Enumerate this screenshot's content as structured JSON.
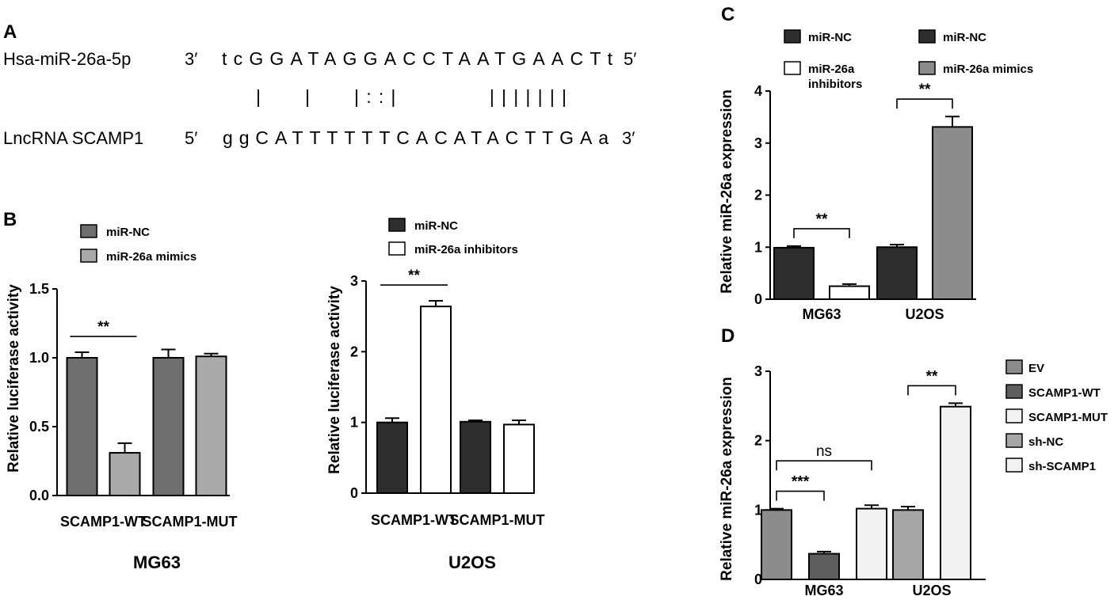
{
  "panels": {
    "A": "A",
    "B": "B",
    "C": "C",
    "D": "D"
  },
  "sequence": {
    "mirna_name": "Hsa-miR-26a-5p",
    "mirna_left_end": "3′",
    "mirna_seq": "tcGGATAGGACCTAATGAACTt",
    "mirna_right_end": "5′",
    "pairing": "|   |   |::|       |||||||",
    "lnc_name": "LncRNA SCAMP1",
    "lnc_left_end": "5′",
    "lnc_seq": "ggCATTTTTTCACATACTTGAa",
    "lnc_right_end": "3′"
  },
  "colors": {
    "dark": "#2e2e2e",
    "mid": "#6f6f6f",
    "light": "#aaaaaa",
    "gray": "#8c8c8c",
    "white": "#ffffff"
  },
  "chart_data": [
    {
      "id": "B-left",
      "type": "bar",
      "title": "",
      "cell_line": "MG63",
      "ylabel": "Relative luciferase activity",
      "xlabel": "",
      "ylim": [
        0,
        1.5
      ],
      "yticks": [
        "0.0",
        "0.5",
        "1.0",
        "1.5"
      ],
      "categories": [
        "SCAMP1-WT",
        "SCAMP1-MUT"
      ],
      "legend": "top-left",
      "series": [
        {
          "name": "miR-NC",
          "color": "#6f6f6f",
          "values": [
            1.0,
            1.0
          ],
          "errors": [
            0.04,
            0.06
          ]
        },
        {
          "name": "miR-26a mimics",
          "color": "#aaaaaa",
          "values": [
            0.31,
            1.01
          ],
          "errors": [
            0.07,
            0.02
          ]
        }
      ],
      "annotations": [
        {
          "text": "**",
          "category": 0
        }
      ]
    },
    {
      "id": "B-right",
      "type": "bar",
      "title": "",
      "cell_line": "U2OS",
      "ylabel": "Relative luciferase activity",
      "xlabel": "",
      "ylim": [
        0,
        3
      ],
      "yticks": [
        "0",
        "1",
        "2",
        "3"
      ],
      "categories": [
        "SCAMP1-WT",
        "SCAMP1-MUT"
      ],
      "legend": "top-left",
      "series": [
        {
          "name": "miR-NC",
          "color": "#2e2e2e",
          "values": [
            1.0,
            1.01
          ],
          "errors": [
            0.06,
            0.02
          ]
        },
        {
          "name": "miR-26a  inhibitors",
          "color": "#ffffff",
          "values": [
            2.64,
            0.97
          ],
          "errors": [
            0.08,
            0.06
          ]
        }
      ],
      "annotations": [
        {
          "text": "**",
          "category": 0
        }
      ]
    },
    {
      "id": "C",
      "type": "bar",
      "title": "",
      "ylabel": "Relative miR-26a expression",
      "xlabel": "",
      "ylim": [
        0,
        4
      ],
      "yticks": [
        "0",
        "1",
        "2",
        "3",
        "4"
      ],
      "categories": [
        "MG63",
        "U2OS"
      ],
      "legend": "top",
      "legend_entries": [
        {
          "name": "miR-NC",
          "color": "#2e2e2e"
        },
        {
          "name": "miR-NC",
          "color": "#2e2e2e"
        },
        {
          "name": "miR-26a\ninhibitors",
          "color": "#ffffff"
        },
        {
          "name": "miR-26a mimics",
          "color": "#8c8c8c"
        }
      ],
      "bars": [
        {
          "category": "MG63",
          "label": "miR-NC",
          "color": "#2e2e2e",
          "value": 0.99,
          "error": 0.03
        },
        {
          "category": "MG63",
          "label": "miR-26a inhibitors",
          "color": "#ffffff",
          "value": 0.25,
          "error": 0.04
        },
        {
          "category": "U2OS",
          "label": "miR-NC",
          "color": "#2e2e2e",
          "value": 1.0,
          "error": 0.05
        },
        {
          "category": "U2OS",
          "label": "miR-26a mimics",
          "color": "#8c8c8c",
          "value": 3.31,
          "error": 0.2
        }
      ],
      "annotations": [
        {
          "text": "**",
          "bars": [
            0,
            1
          ]
        },
        {
          "text": "**",
          "bars": [
            2,
            3
          ]
        }
      ]
    },
    {
      "id": "D",
      "type": "bar",
      "title": "",
      "ylabel": "Relative miR-26a expression",
      "xlabel": "",
      "ylim": [
        0,
        3
      ],
      "yticks": [
        "0",
        "1",
        "2",
        "3"
      ],
      "categories": [
        "MG63",
        "U2OS"
      ],
      "legend": "right",
      "legend_entries": [
        {
          "name": "EV",
          "color": "#8c8c8c"
        },
        {
          "name": "SCAMP1-WT",
          "color": "#5e5e5e"
        },
        {
          "name": "SCAMP1-MUT",
          "color": "#f2f2f2"
        },
        {
          "name": "sh-NC",
          "color": "#a6a6a6"
        },
        {
          "name": "sh-SCAMP1",
          "color": "#f2f2f2"
        }
      ],
      "bars": [
        {
          "category": "MG63",
          "label": "EV",
          "color": "#8c8c8c",
          "value": 1.0,
          "error": 0.02
        },
        {
          "category": "MG63",
          "label": "SCAMP1-WT",
          "color": "#5e5e5e",
          "value": 0.37,
          "error": 0.03
        },
        {
          "category": "MG63",
          "label": "SCAMP1-MUT",
          "color": "#f2f2f2",
          "value": 1.02,
          "error": 0.05
        },
        {
          "category": "U2OS",
          "label": "sh-NC",
          "color": "#a6a6a6",
          "value": 1.0,
          "error": 0.05
        },
        {
          "category": "U2OS",
          "label": "sh-SCAMP1",
          "color": "#f2f2f2",
          "value": 2.49,
          "error": 0.05
        }
      ],
      "annotations": [
        {
          "text": "***",
          "bars": [
            0,
            1
          ]
        },
        {
          "text": "ns",
          "bars": [
            0,
            2
          ]
        },
        {
          "text": "**",
          "bars": [
            3,
            4
          ]
        }
      ]
    }
  ]
}
